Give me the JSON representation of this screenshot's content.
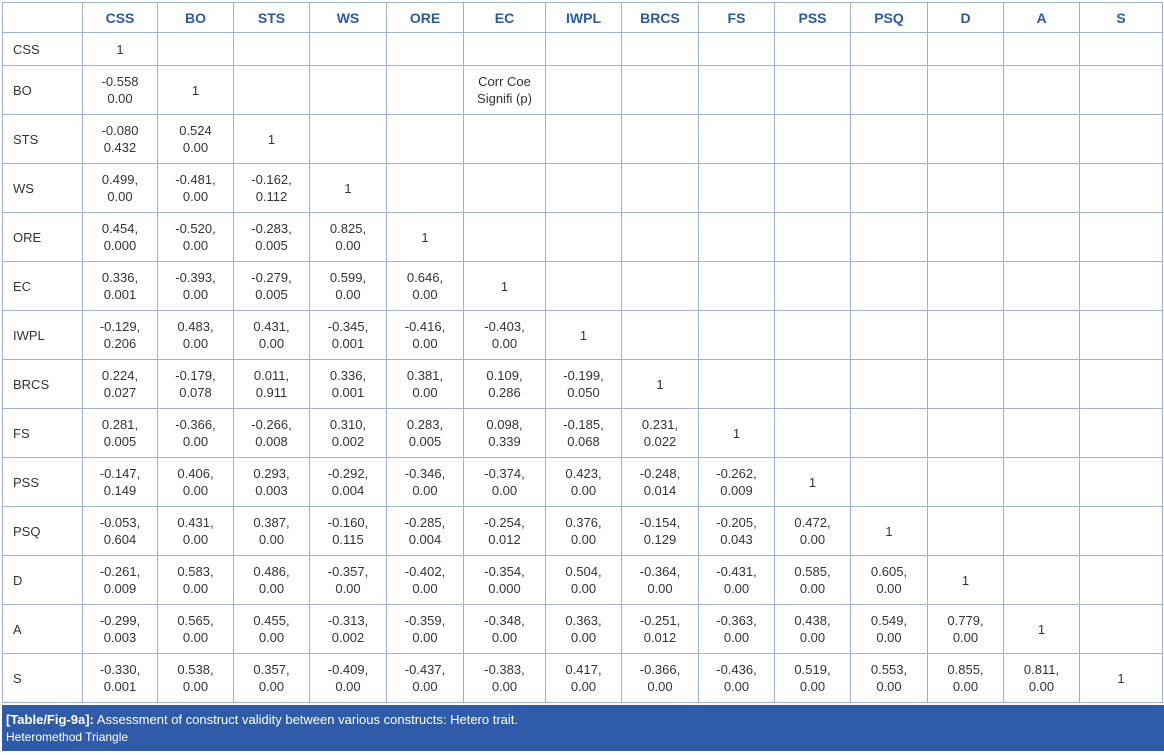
{
  "table": {
    "columns": [
      "CSS",
      "BO",
      "STS",
      "WS",
      "ORE",
      "EC",
      "IWPL",
      "BRCS",
      "FS",
      "PSS",
      "PSQ",
      "D",
      "A",
      "S"
    ],
    "rows": [
      {
        "label": "CSS",
        "cells": [
          [
            "1"
          ]
        ]
      },
      {
        "label": "BO",
        "cells": [
          [
            "-0.558",
            "0.00"
          ],
          [
            "1"
          ]
        ]
      },
      {
        "label": "STS",
        "cells": [
          [
            "-0.080",
            "0.432"
          ],
          [
            "0.524",
            "0.00"
          ],
          [
            "1"
          ]
        ]
      },
      {
        "label": "WS",
        "cells": [
          [
            "0.499,",
            "0.00"
          ],
          [
            "-0.481,",
            "0.00"
          ],
          [
            "-0.162,",
            "0.112"
          ],
          [
            "1"
          ]
        ]
      },
      {
        "label": "ORE",
        "cells": [
          [
            "0.454,",
            "0.000"
          ],
          [
            "-0.520,",
            "0.00"
          ],
          [
            "-0.283,",
            "0.005"
          ],
          [
            "0.825,",
            "0.00"
          ],
          [
            "1"
          ]
        ]
      },
      {
        "label": "EC",
        "cells": [
          [
            "0.336,",
            "0.001"
          ],
          [
            "-0.393,",
            "0.00"
          ],
          [
            "-0.279,",
            "0.005"
          ],
          [
            "0.599,",
            "0.00"
          ],
          [
            "0.646,",
            "0.00"
          ],
          [
            "1"
          ]
        ]
      },
      {
        "label": "IWPL",
        "cells": [
          [
            "-0.129,",
            "0.206"
          ],
          [
            "0.483,",
            "0.00"
          ],
          [
            "0.431,",
            "0.00"
          ],
          [
            "-0.345,",
            "0.001"
          ],
          [
            "-0.416,",
            "0.00"
          ],
          [
            "-0.403,",
            "0.00"
          ],
          [
            "1"
          ]
        ]
      },
      {
        "label": "BRCS",
        "cells": [
          [
            "0.224,",
            "0.027"
          ],
          [
            "-0.179,",
            "0.078"
          ],
          [
            "0.011,",
            "0.911"
          ],
          [
            "0.336,",
            "0.001"
          ],
          [
            "0.381,",
            "0.00"
          ],
          [
            "0.109,",
            "0.286"
          ],
          [
            "-0.199,",
            "0.050"
          ],
          [
            "1"
          ]
        ]
      },
      {
        "label": "FS",
        "cells": [
          [
            "0.281,",
            "0.005"
          ],
          [
            "-0.366,",
            "0.00"
          ],
          [
            "-0.266,",
            "0.008"
          ],
          [
            "0.310,",
            "0.002"
          ],
          [
            "0.283,",
            "0.005"
          ],
          [
            "0.098,",
            "0.339"
          ],
          [
            "-0.185,",
            "0.068"
          ],
          [
            "0.231,",
            "0.022"
          ],
          [
            "1"
          ]
        ]
      },
      {
        "label": "PSS",
        "cells": [
          [
            "-0.147,",
            "0.149"
          ],
          [
            "0.406,",
            "0.00"
          ],
          [
            "0.293,",
            "0.003"
          ],
          [
            "-0.292,",
            "0.004"
          ],
          [
            "-0.346,",
            "0.00"
          ],
          [
            "-0.374,",
            "0.00"
          ],
          [
            "0.423,",
            "0.00"
          ],
          [
            "-0.248,",
            "0.014"
          ],
          [
            "-0.262,",
            "0.009"
          ],
          [
            "1"
          ]
        ]
      },
      {
        "label": "PSQ",
        "cells": [
          [
            "-0.053,",
            "0.604"
          ],
          [
            "0.431,",
            "0.00"
          ],
          [
            "0.387,",
            "0.00"
          ],
          [
            "-0.160,",
            "0.115"
          ],
          [
            "-0.285,",
            "0.004"
          ],
          [
            "-0.254,",
            "0.012"
          ],
          [
            "0.376,",
            "0.00"
          ],
          [
            "-0.154,",
            "0.129"
          ],
          [
            "-0.205,",
            "0.043"
          ],
          [
            "0.472,",
            "0.00"
          ],
          [
            "1"
          ]
        ]
      },
      {
        "label": "D",
        "cells": [
          [
            "-0.261,",
            "0.009"
          ],
          [
            "0.583,",
            "0.00"
          ],
          [
            "0.486,",
            "0.00"
          ],
          [
            "-0.357,",
            "0.00"
          ],
          [
            "-0.402,",
            "0.00"
          ],
          [
            "-0.354,",
            "0.000"
          ],
          [
            "0.504,",
            "0.00"
          ],
          [
            "-0.364,",
            "0.00"
          ],
          [
            "-0.431,",
            "0.00"
          ],
          [
            "0.585,",
            "0.00"
          ],
          [
            "0.605,",
            "0.00"
          ],
          [
            "1"
          ]
        ]
      },
      {
        "label": "A",
        "cells": [
          [
            "-0.299,",
            "0.003"
          ],
          [
            "0.565,",
            "0.00"
          ],
          [
            "0.455,",
            "0.00"
          ],
          [
            "-0.313,",
            "0.002"
          ],
          [
            "-0.359,",
            "0.00"
          ],
          [
            "-0.348,",
            "0.00"
          ],
          [
            "0.363,",
            "0.00"
          ],
          [
            "-0.251,",
            "0.012"
          ],
          [
            "-0.363,",
            "0.00"
          ],
          [
            "0.438,",
            "0.00"
          ],
          [
            "0.549,",
            "0.00"
          ],
          [
            "0.779,",
            "0.00"
          ],
          [
            "1"
          ]
        ]
      },
      {
        "label": "S",
        "cells": [
          [
            "-0.330,",
            "0.001"
          ],
          [
            "0.538,",
            "0.00"
          ],
          [
            "0.357,",
            "0.00"
          ],
          [
            "-0.409,",
            "0.00"
          ],
          [
            "-0.437,",
            "0.00"
          ],
          [
            "-0.383,",
            "0.00"
          ],
          [
            "0.417,",
            "0.00"
          ],
          [
            "-0.366,",
            "0.00"
          ],
          [
            "-0.436,",
            "0.00"
          ],
          [
            "0.519,",
            "0.00"
          ],
          [
            "0.553,",
            "0.00"
          ],
          [
            "0.855,",
            "0.00"
          ],
          [
            "0.811,",
            "0.00"
          ],
          [
            "1"
          ]
        ]
      }
    ],
    "note": [
      "Corr Coe",
      "Signifi (p)"
    ]
  },
  "caption": {
    "label": "[Table/Fig-9a]:",
    "text": "Assessment of construct validity between various constructs: Hetero trait.",
    "line2": "Heteromethod Triangle"
  }
}
